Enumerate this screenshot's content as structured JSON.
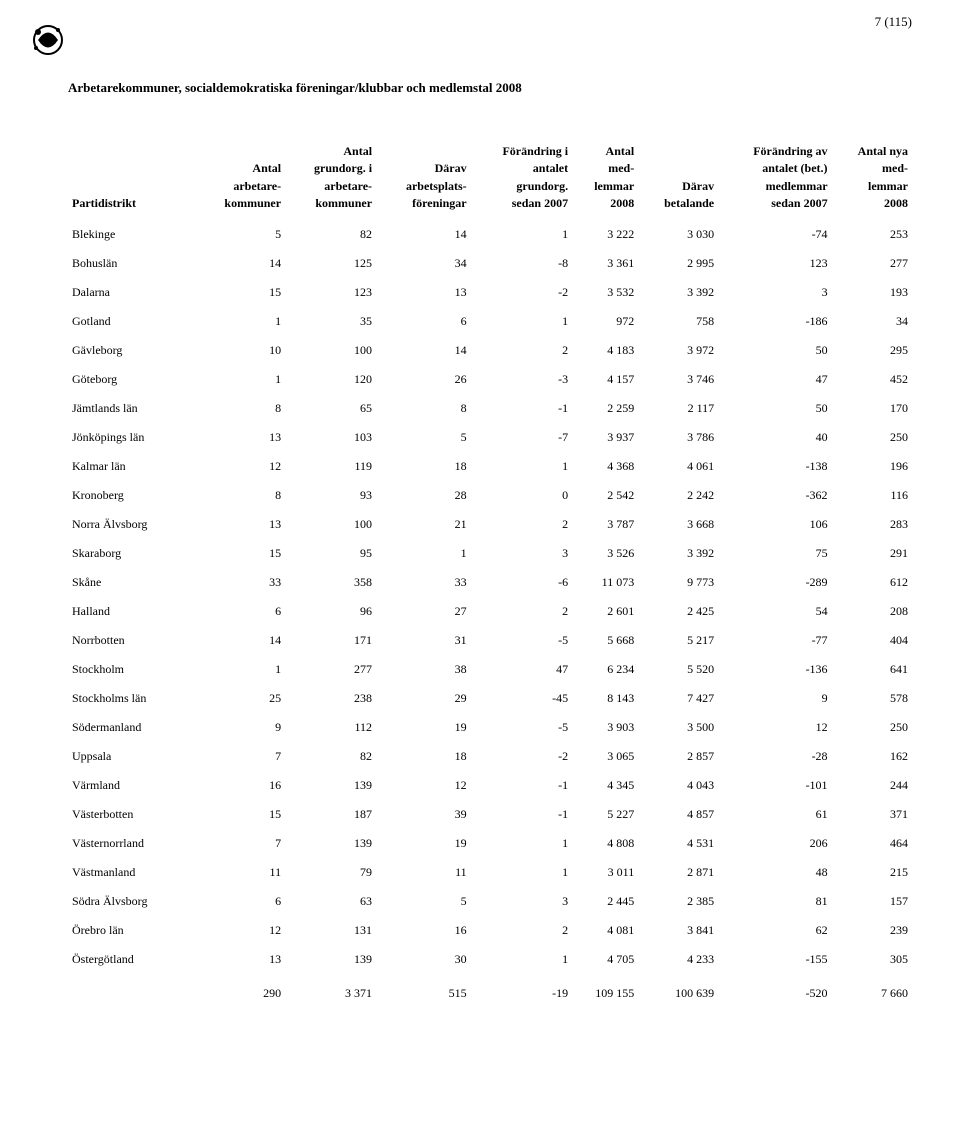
{
  "page_number": "7 (115)",
  "title": "Arbetarekommuner, socialdemokratiska föreningar/klubbar och medlemstal 2008",
  "headers": {
    "partidistrikt": "Partidistrikt",
    "c1_l1": "Antal",
    "c1_l2": "arbetare-",
    "c1_l3": "kommuner",
    "c2_l1": "Antal",
    "c2_l2": "grundorg. i",
    "c2_l3": "arbetare-",
    "c2_l4": "kommuner",
    "c3_l1": "Därav",
    "c3_l2": "arbetsplats-",
    "c3_l3": "föreningar",
    "c4_l1": "Förändring i",
    "c4_l2": "antalet",
    "c4_l3": "grundorg.",
    "c4_l4": "sedan 2007",
    "c5_l1": "Antal",
    "c5_l2": "med-",
    "c5_l3": "lemmar",
    "c5_l4": "2008",
    "c6_l1": "Därav",
    "c6_l2": "betalande",
    "c7_l1": "Förändring av",
    "c7_l2": "antalet (bet.)",
    "c7_l3": "medlemmar",
    "c7_l4": "sedan 2007",
    "c8_l1": "Antal nya",
    "c8_l2": "med-",
    "c8_l3": "lemmar",
    "c8_l4": "2008"
  },
  "rows": [
    {
      "d": "Blekinge",
      "c": [
        "5",
        "82",
        "14",
        "1",
        "3 222",
        "3 030",
        "-74",
        "253"
      ]
    },
    {
      "d": "Bohuslän",
      "c": [
        "14",
        "125",
        "34",
        "-8",
        "3 361",
        "2 995",
        "123",
        "277"
      ]
    },
    {
      "d": "Dalarna",
      "c": [
        "15",
        "123",
        "13",
        "-2",
        "3 532",
        "3 392",
        "3",
        "193"
      ]
    },
    {
      "d": "Gotland",
      "c": [
        "1",
        "35",
        "6",
        "1",
        "972",
        "758",
        "-186",
        "34"
      ]
    },
    {
      "d": "Gävleborg",
      "c": [
        "10",
        "100",
        "14",
        "2",
        "4 183",
        "3 972",
        "50",
        "295"
      ]
    },
    {
      "d": "Göteborg",
      "c": [
        "1",
        "120",
        "26",
        "-3",
        "4 157",
        "3 746",
        "47",
        "452"
      ]
    },
    {
      "d": "Jämtlands län",
      "c": [
        "8",
        "65",
        "8",
        "-1",
        "2 259",
        "2 117",
        "50",
        "170"
      ]
    },
    {
      "d": "Jönköpings län",
      "c": [
        "13",
        "103",
        "5",
        "-7",
        "3 937",
        "3 786",
        "40",
        "250"
      ]
    },
    {
      "d": "Kalmar län",
      "c": [
        "12",
        "119",
        "18",
        "1",
        "4 368",
        "4 061",
        "-138",
        "196"
      ]
    },
    {
      "d": "Kronoberg",
      "c": [
        "8",
        "93",
        "28",
        "0",
        "2 542",
        "2 242",
        "-362",
        "116"
      ]
    },
    {
      "d": "Norra Älvsborg",
      "c": [
        "13",
        "100",
        "21",
        "2",
        "3 787",
        "3 668",
        "106",
        "283"
      ]
    },
    {
      "d": "Skaraborg",
      "c": [
        "15",
        "95",
        "1",
        "3",
        "3 526",
        "3 392",
        "75",
        "291"
      ]
    },
    {
      "d": "Skåne",
      "c": [
        "33",
        "358",
        "33",
        "-6",
        "11 073",
        "9 773",
        "-289",
        "612"
      ]
    },
    {
      "d": "Halland",
      "c": [
        "6",
        "96",
        "27",
        "2",
        "2 601",
        "2 425",
        "54",
        "208"
      ]
    },
    {
      "d": "Norrbotten",
      "c": [
        "14",
        "171",
        "31",
        "-5",
        "5 668",
        "5 217",
        "-77",
        "404"
      ]
    },
    {
      "d": "Stockholm",
      "c": [
        "1",
        "277",
        "38",
        "47",
        "6 234",
        "5 520",
        "-136",
        "641"
      ]
    },
    {
      "d": "Stockholms län",
      "c": [
        "25",
        "238",
        "29",
        "-45",
        "8 143",
        "7 427",
        "9",
        "578"
      ]
    },
    {
      "d": "Södermanland",
      "c": [
        "9",
        "112",
        "19",
        "-5",
        "3 903",
        "3 500",
        "12",
        "250"
      ]
    },
    {
      "d": "Uppsala",
      "c": [
        "7",
        "82",
        "18",
        "-2",
        "3 065",
        "2 857",
        "-28",
        "162"
      ]
    },
    {
      "d": "Värmland",
      "c": [
        "16",
        "139",
        "12",
        "-1",
        "4 345",
        "4 043",
        "-101",
        "244"
      ]
    },
    {
      "d": "Västerbotten",
      "c": [
        "15",
        "187",
        "39",
        "-1",
        "5 227",
        "4 857",
        "61",
        "371"
      ]
    },
    {
      "d": "Västernorrland",
      "c": [
        "7",
        "139",
        "19",
        "1",
        "4 808",
        "4 531",
        "206",
        "464"
      ]
    },
    {
      "d": "Västmanland",
      "c": [
        "11",
        "79",
        "11",
        "1",
        "3 011",
        "2 871",
        "48",
        "215"
      ]
    },
    {
      "d": "Södra Älvsborg",
      "c": [
        "6",
        "63",
        "5",
        "3",
        "2 445",
        "2 385",
        "81",
        "157"
      ]
    },
    {
      "d": "Örebro län",
      "c": [
        "12",
        "131",
        "16",
        "2",
        "4 081",
        "3 841",
        "62",
        "239"
      ]
    },
    {
      "d": "Östergötland",
      "c": [
        "13",
        "139",
        "30",
        "1",
        "4 705",
        "4 233",
        "-155",
        "305"
      ]
    }
  ],
  "totals": [
    "290",
    "3 371",
    "515",
    "-19",
    "109 155",
    "100 639",
    "-520",
    "7 660"
  ]
}
